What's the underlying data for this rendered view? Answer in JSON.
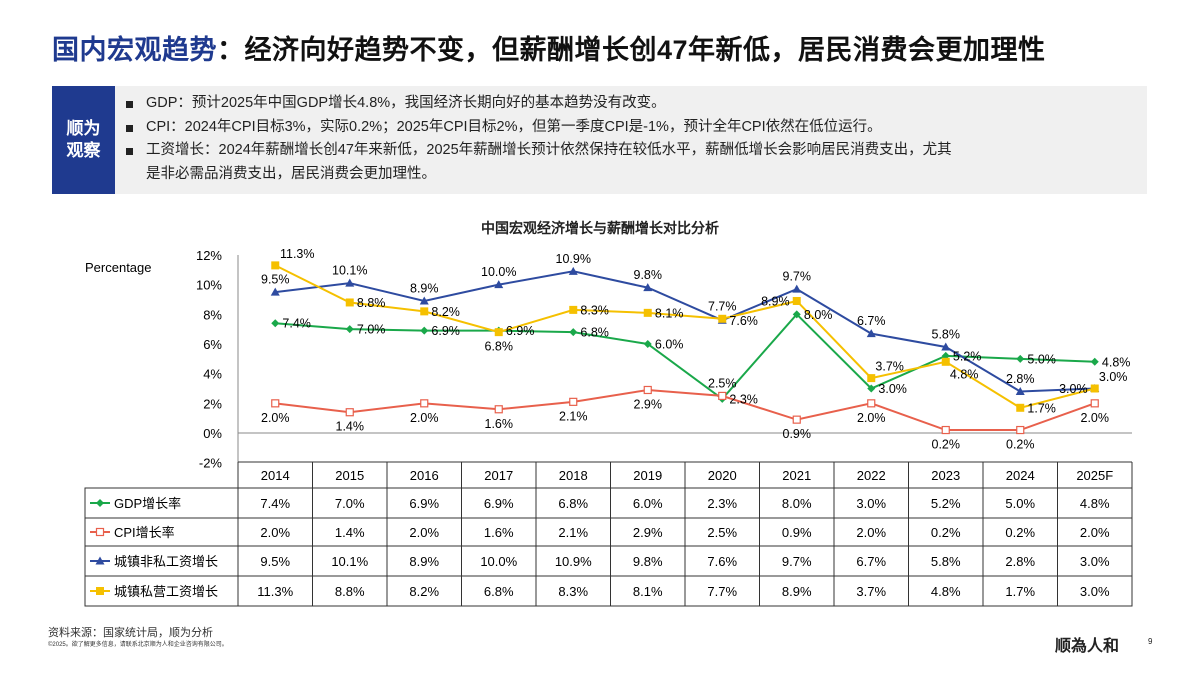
{
  "title": {
    "highlight": "国内宏观趋势",
    "rest": "：经济向好趋势不变，但薪酬增长创47年新低，居民消费会更加理性"
  },
  "observation": {
    "tag_line1": "顺为",
    "tag_line2": "观察",
    "bullets": [
      "GDP：预计2025年中国GDP增长4.8%，我国经济长期向好的基本趋势没有改变。",
      "CPI：2024年CPI目标3%，实际0.2%；2025年CPI目标2%，但第一季度CPI是-1%，预计全年CPI依然在低位运行。",
      "工资增长：2024年薪酬增长创47年来新低，2025年薪酬增长预计依然保持在较低水平，薪酬低增长会影响居民消费支出，尤其",
      "是非必需品消费支出，居民消费会更加理性。"
    ]
  },
  "chart_data": {
    "type": "line",
    "title": "中国宏观经济增长与薪酬增长对比分析",
    "ylabel": "Percentage",
    "ylim": [
      -2,
      12
    ],
    "yticks": [
      "-2%",
      "0%",
      "2%",
      "4%",
      "6%",
      "8%",
      "10%",
      "12%"
    ],
    "categories": [
      "2014",
      "2015",
      "2016",
      "2017",
      "2018",
      "2019",
      "2020",
      "2021",
      "2022",
      "2023",
      "2024",
      "2025F"
    ],
    "legend_placement": "data-table",
    "grid": false,
    "series": [
      {
        "name": "GDP增长率",
        "color": "#1aa84a",
        "marker": "diamond",
        "values": [
          7.4,
          7.0,
          6.9,
          6.9,
          6.8,
          6.0,
          2.3,
          8.0,
          3.0,
          5.2,
          5.0,
          4.8
        ]
      },
      {
        "name": "CPI增长率",
        "color": "#e8604c",
        "marker": "open-square",
        "values": [
          2.0,
          1.4,
          2.0,
          1.6,
          2.1,
          2.9,
          2.5,
          0.9,
          2.0,
          0.2,
          0.2,
          2.0
        ]
      },
      {
        "name": "城镇非私工资增长",
        "color": "#2e4ba0",
        "marker": "triangle",
        "values": [
          9.5,
          10.1,
          8.9,
          10.0,
          10.9,
          9.8,
          7.6,
          9.7,
          6.7,
          5.8,
          2.8,
          3.0
        ]
      },
      {
        "name": "城镇私营工资增长",
        "color": "#f5c000",
        "marker": "square",
        "values": [
          11.3,
          8.8,
          8.2,
          6.8,
          8.3,
          8.1,
          7.7,
          8.9,
          3.7,
          4.8,
          1.7,
          3.0
        ]
      }
    ]
  },
  "footer": {
    "source": "资料来源：国家统计局，顺为分析",
    "copyright": "©2025。欲了解更多信息，请联系北京顺为人和企业咨询有限公司。",
    "logo": "顺为人和",
    "page": "9"
  }
}
